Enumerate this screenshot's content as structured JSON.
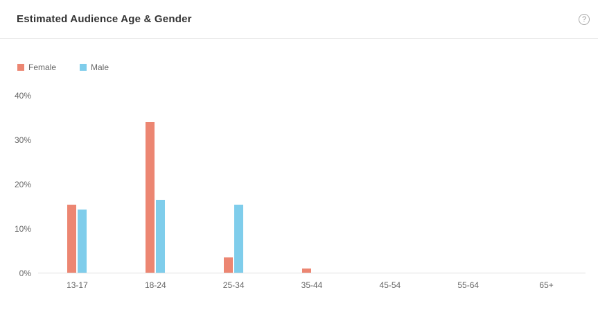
{
  "header": {
    "title": "Estimated Audience Age & Gender",
    "help_icon_glyph": "?"
  },
  "legend": {
    "items": [
      {
        "label": "Female",
        "color": "#ec8672"
      },
      {
        "label": "Male",
        "color": "#7fcdeb"
      }
    ]
  },
  "chart_data": {
    "type": "bar",
    "title": "Estimated Audience Age & Gender",
    "categories": [
      "13-17",
      "18-24",
      "25-34",
      "35-44",
      "45-54",
      "55-64",
      "65+"
    ],
    "series": [
      {
        "name": "Female",
        "color": "#ec8672",
        "values": [
          15.4,
          34.0,
          3.4,
          1.0,
          0,
          0,
          0
        ]
      },
      {
        "name": "Male",
        "color": "#7fcdeb",
        "values": [
          14.3,
          16.5,
          15.4,
          0,
          0,
          0,
          0
        ]
      }
    ],
    "xlabel": "",
    "ylabel": "",
    "ylim": [
      0,
      40
    ],
    "yticks": [
      "0%",
      "10%",
      "20%",
      "30%",
      "40%"
    ],
    "grid": false,
    "legend_position": "top-left"
  }
}
